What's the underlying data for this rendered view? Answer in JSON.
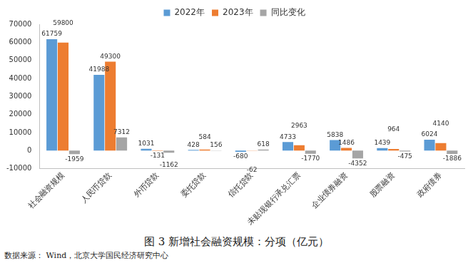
{
  "chart_data": {
    "type": "bar",
    "title": "图 3  新增社会融资规模：分项（亿元）",
    "annotations": [
      "数据来源：  Wind，北京大学国民经济研究中心"
    ],
    "categories": [
      "社会融资规模",
      "人民币贷款",
      "外币贷款",
      "委托贷款",
      "信托贷款",
      "未贴现银行承兑汇票",
      "企业债券融资",
      "股票融资",
      "政府债券"
    ],
    "series": [
      {
        "name": "2022年",
        "color": "#5b9bd5",
        "values": [
          61759,
          41988,
          1031,
          428,
          -680,
          4733,
          5838,
          1439,
          6024
        ]
      },
      {
        "name": "2023年",
        "color": "#ed7d31",
        "values": [
          59800,
          49300,
          -131,
          584,
          -62,
          2963,
          1486,
          964,
          4140
        ]
      },
      {
        "name": "同比变化",
        "color": "#a5a5a5",
        "values": [
          -1959,
          7312,
          -1162,
          156,
          618,
          -1770,
          -4352,
          -475,
          -1886
        ]
      }
    ],
    "ylim": [
      -10000,
      70000
    ],
    "yticks": [
      -10000,
      0,
      10000,
      20000,
      30000,
      40000,
      50000,
      60000,
      70000
    ],
    "grid": false,
    "legend": "top",
    "data_labels": true
  }
}
